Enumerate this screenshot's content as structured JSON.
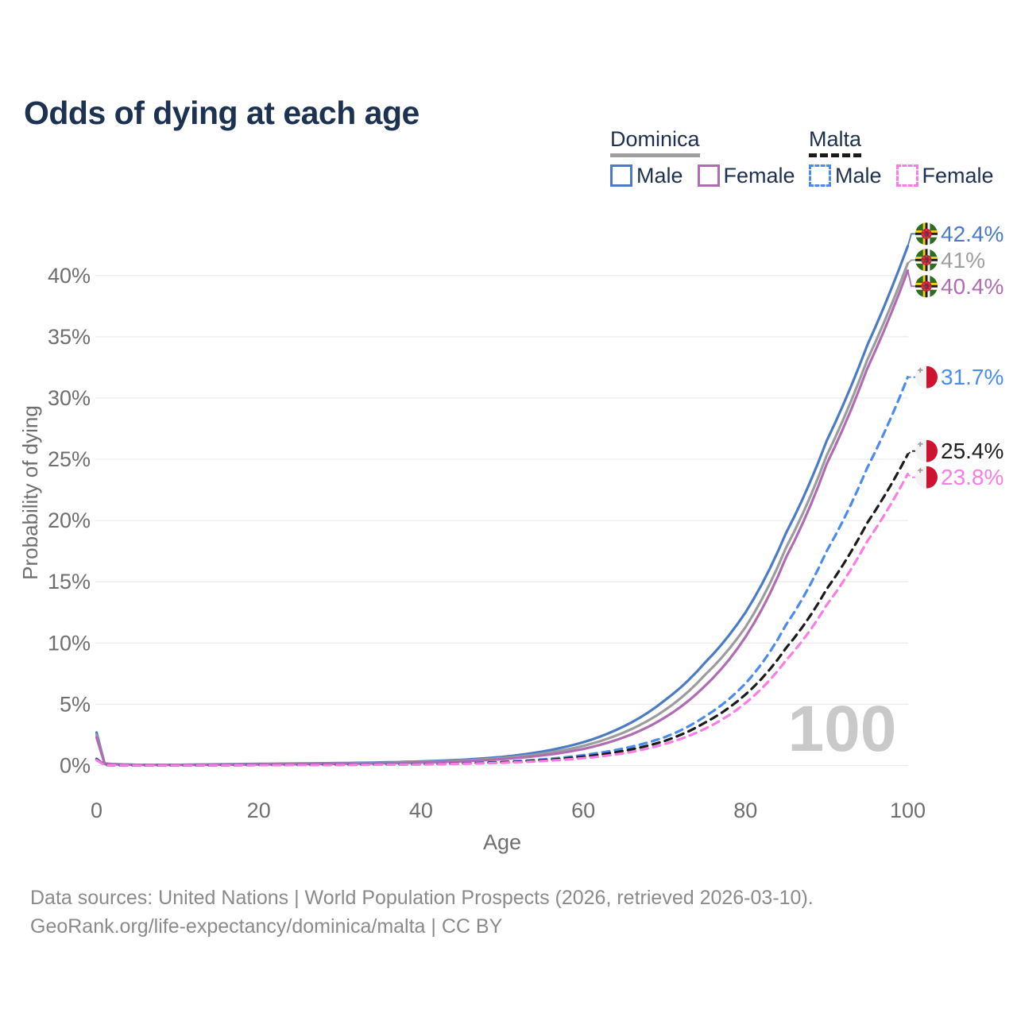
{
  "page": {
    "title": "Odds of dying at each age"
  },
  "legend": {
    "groups": [
      {
        "country": "Dominica",
        "line_style": "solid",
        "underline_color": "#9e9e9e",
        "items": [
          {
            "label": "Male",
            "color": "#4a7bc4"
          },
          {
            "label": "Female",
            "color": "#b06cb2"
          }
        ]
      },
      {
        "country": "Malta",
        "line_style": "dashed",
        "underline_color": "#1b1b1b",
        "items": [
          {
            "label": "Male",
            "color": "#4b8bf0"
          },
          {
            "label": "Female",
            "color": "#fb7ce4"
          }
        ]
      }
    ]
  },
  "axes": {
    "x_label": "Age",
    "y_label": "Probability of dying",
    "x_ticks": [
      "0",
      "20",
      "40",
      "60",
      "80",
      "100"
    ],
    "y_ticks": [
      "0%",
      "5%",
      "10%",
      "15%",
      "20%",
      "25%",
      "30%",
      "35%",
      "40%"
    ]
  },
  "watermark": "100",
  "end_labels": [
    {
      "text": "42.4%",
      "value": 42.4,
      "color": "#4a7bc4",
      "flag": "dominica",
      "dashed": false
    },
    {
      "text": "41%",
      "value": 41.0,
      "color": "#9e9e9e",
      "flag": "dominica",
      "dashed": false
    },
    {
      "text": "40.4%",
      "value": 40.4,
      "color": "#b06cb2",
      "flag": "dominica",
      "dashed": false
    },
    {
      "text": "31.7%",
      "value": 31.7,
      "color": "#4b8bf0",
      "flag": "malta",
      "dashed": true
    },
    {
      "text": "25.4%",
      "value": 25.4,
      "color": "#1f1f1f",
      "flag": "malta",
      "dashed": true
    },
    {
      "text": "23.8%",
      "value": 23.8,
      "color": "#fb7ce4",
      "flag": "malta",
      "dashed": true
    }
  ],
  "footer": {
    "line1": "Data sources: United Nations | World Population Prospects (2026, retrieved 2026-03-10).",
    "line2": "GeoRank.org/life-expectancy/dominica/malta | CC BY"
  },
  "chart_data": {
    "type": "line",
    "title": "Odds of dying at each age",
    "xlabel": "Age",
    "ylabel": "Probability of dying",
    "xlim": [
      0,
      100
    ],
    "ylim": [
      0,
      44
    ],
    "y_unit": "percent",
    "grid": "horizontal",
    "legend_position": "top-right",
    "x": [
      0,
      1,
      5,
      10,
      15,
      20,
      25,
      30,
      35,
      40,
      45,
      50,
      55,
      60,
      65,
      70,
      75,
      80,
      85,
      90,
      95,
      100
    ],
    "series": [
      {
        "name": "Dominica Male",
        "color": "#4a7bc4",
        "dash": "solid",
        "values": [
          2.7,
          0.16,
          0.06,
          0.06,
          0.1,
          0.14,
          0.17,
          0.2,
          0.25,
          0.33,
          0.47,
          0.7,
          1.15,
          1.9,
          3.2,
          5.3,
          8.4,
          12.5,
          19.0,
          26.5,
          34.3,
          42.4
        ]
      },
      {
        "name": "Dominica Both sexes",
        "color": "#9c9c9c",
        "dash": "solid",
        "values": [
          2.5,
          0.14,
          0.055,
          0.055,
          0.08,
          0.11,
          0.14,
          0.17,
          0.21,
          0.28,
          0.4,
          0.6,
          0.97,
          1.6,
          2.7,
          4.5,
          7.4,
          11.3,
          17.8,
          25.3,
          33.1,
          41.0
        ]
      },
      {
        "name": "Dominica Female",
        "color": "#b06cb2",
        "dash": "solid",
        "values": [
          2.3,
          0.13,
          0.05,
          0.05,
          0.07,
          0.09,
          0.11,
          0.14,
          0.18,
          0.24,
          0.34,
          0.52,
          0.83,
          1.35,
          2.3,
          3.9,
          6.5,
          10.5,
          17.0,
          24.6,
          32.4,
          40.4
        ]
      },
      {
        "name": "Malta Male",
        "color": "#4b8bf0",
        "dash": "dashed",
        "values": [
          0.55,
          0.04,
          0.01,
          0.01,
          0.03,
          0.05,
          0.06,
          0.07,
          0.09,
          0.12,
          0.18,
          0.3,
          0.5,
          0.85,
          1.4,
          2.3,
          4.0,
          6.7,
          11.5,
          17.5,
          24.3,
          31.7
        ]
      },
      {
        "name": "Malta Both sexes",
        "color": "#1b1b1b",
        "dash": "dashed",
        "values": [
          0.5,
          0.035,
          0.01,
          0.01,
          0.02,
          0.04,
          0.05,
          0.06,
          0.08,
          0.1,
          0.16,
          0.26,
          0.43,
          0.72,
          1.2,
          2.0,
          3.5,
          5.8,
          9.6,
          14.4,
          19.8,
          25.4
        ]
      },
      {
        "name": "Malta Female",
        "color": "#fb7ce4",
        "dash": "dashed",
        "values": [
          0.45,
          0.03,
          0.01,
          0.01,
          0.02,
          0.03,
          0.04,
          0.05,
          0.07,
          0.09,
          0.14,
          0.22,
          0.37,
          0.6,
          1.0,
          1.75,
          3.0,
          5.1,
          8.6,
          13.1,
          18.3,
          23.8
        ]
      }
    ]
  }
}
